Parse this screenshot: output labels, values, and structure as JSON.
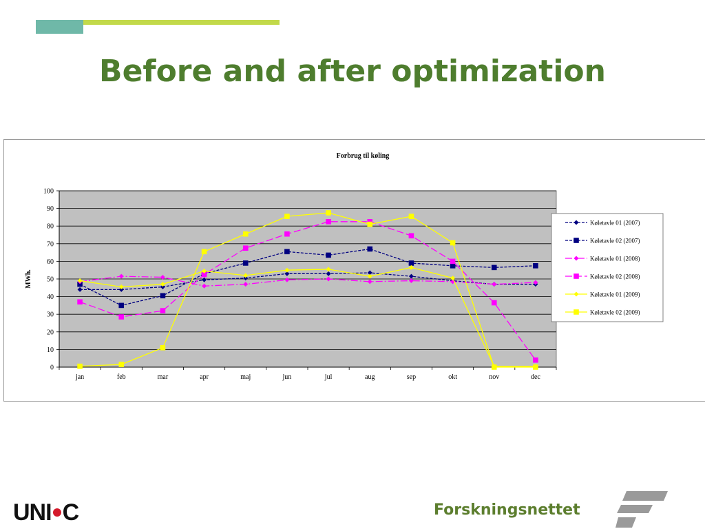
{
  "slide": {
    "title": "Before and after optimization"
  },
  "colors": {
    "title": "#4e7d2e",
    "accent_teal": "#6fb8a8",
    "accent_lime": "#c2d94a",
    "plot_background": "#c0c0c0"
  },
  "chart_data": {
    "type": "line",
    "title": "Forbrug til køling",
    "xlabel": "",
    "ylabel": "MWh.",
    "categories": [
      "jan",
      "feb",
      "mar",
      "apr",
      "maj",
      "jun",
      "jul",
      "aug",
      "sep",
      "okt",
      "nov",
      "dec"
    ],
    "ylim": [
      0,
      100
    ],
    "yticks": [
      0,
      10,
      20,
      30,
      40,
      50,
      60,
      70,
      80,
      90,
      100
    ],
    "grid": true,
    "legend_position": "right",
    "series": [
      {
        "name": "Køletavle 01 (2007)",
        "color": "#000080",
        "dash": "dash",
        "marker": "diamond",
        "values": [
          44,
          44,
          45.5,
          49.5,
          50.5,
          53,
          53,
          53.5,
          51.5,
          49,
          47,
          47
        ]
      },
      {
        "name": "Køletavle 02 (2007)",
        "color": "#000080",
        "dash": "dash",
        "marker": "square",
        "values": [
          47,
          35,
          40.5,
          53,
          59,
          65.5,
          63.5,
          67,
          59,
          57.5,
          56.5,
          57.5
        ]
      },
      {
        "name": "Køletavle 01 (2008)",
        "color": "#ff00ff",
        "dash": "dashdot",
        "marker": "diamond",
        "values": [
          48.5,
          51.5,
          51,
          46,
          47,
          49.5,
          50,
          48.5,
          49,
          48.5,
          47,
          48
        ]
      },
      {
        "name": "Køletavle 02 (2008)",
        "color": "#ff00ff",
        "dash": "longdash",
        "marker": "square",
        "values": [
          37,
          28.5,
          32,
          52.5,
          67.5,
          75.5,
          82.5,
          82.5,
          74.5,
          60,
          36.5,
          4
        ]
      },
      {
        "name": "Køletavle 01 (2009)",
        "color": "#ffff00",
        "dash": "solid",
        "marker": "diamond",
        "values": [
          49,
          45.5,
          47,
          54.5,
          52,
          55,
          55.5,
          51.5,
          56.5,
          50.5,
          0.5,
          0.5
        ]
      },
      {
        "name": "Køletavle 02 (2009)",
        "color": "#ffff00",
        "dash": "solid",
        "marker": "square",
        "values": [
          0.5,
          1.5,
          11,
          65.5,
          75.5,
          85.5,
          87.5,
          81,
          85.5,
          70.5,
          0,
          0
        ]
      }
    ]
  },
  "logos": {
    "left": {
      "part1": "UNI",
      "part2": "C"
    },
    "right": {
      "text": "Forskningsnettet"
    }
  }
}
